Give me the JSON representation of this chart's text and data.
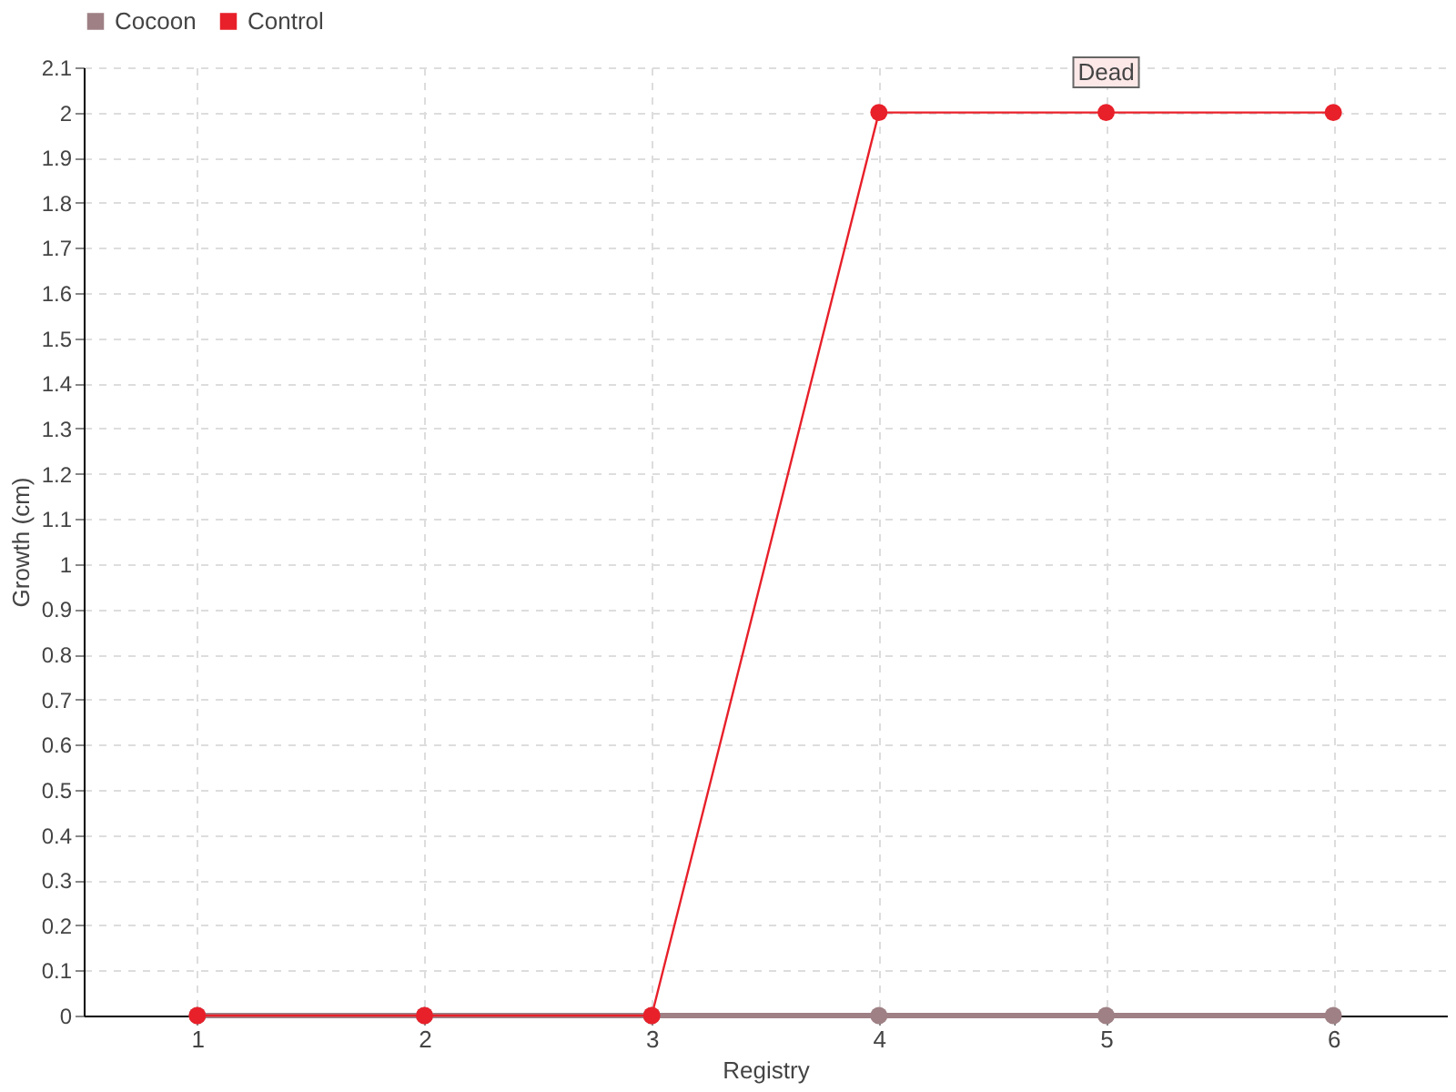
{
  "chart_data": {
    "type": "line",
    "xlabel": "Registry",
    "ylabel": "Growth (cm)",
    "x": [
      1,
      2,
      3,
      4,
      5,
      6
    ],
    "series": [
      {
        "name": "Cocoon",
        "color": "#9e8085",
        "values": [
          0,
          0,
          0,
          0,
          0,
          0
        ]
      },
      {
        "name": "Control",
        "color": "#e8202a",
        "values": [
          0,
          0,
          0,
          2,
          2,
          2
        ]
      }
    ],
    "xlim": [
      0.5,
      6.5
    ],
    "xticks": [
      1,
      2,
      3,
      4,
      5,
      6
    ],
    "ylim": [
      0,
      2.1
    ],
    "yticks": [
      0,
      0.1,
      0.2,
      0.3,
      0.4,
      0.5,
      0.6,
      0.7,
      0.8,
      0.9,
      1,
      1.1,
      1.2,
      1.3,
      1.4,
      1.5,
      1.6,
      1.7,
      1.8,
      1.9,
      2,
      2.1
    ],
    "annotations": [
      {
        "text": "Dead",
        "x": 5,
        "y": 2
      }
    ],
    "grid": true,
    "legend": "top left",
    "marker": "circle",
    "line_style": "solid"
  }
}
